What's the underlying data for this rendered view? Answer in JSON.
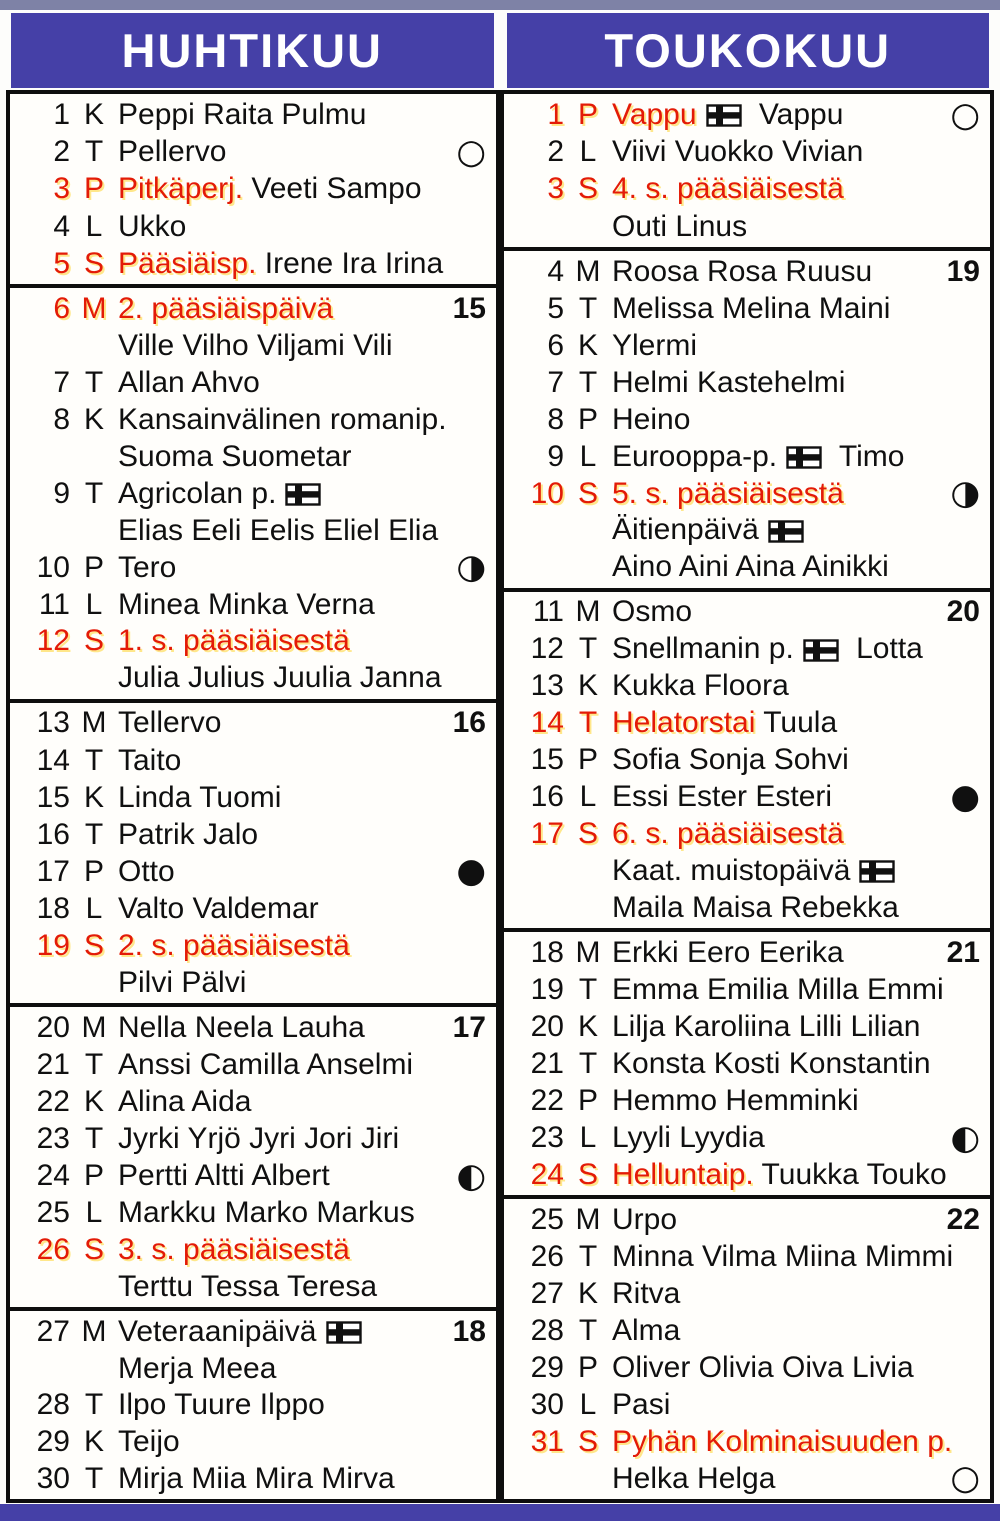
{
  "colors": {
    "header_bg": "#4540a7",
    "holiday_red": "#e31b07",
    "ink": "#101010",
    "edge_strip": "#7e82a6"
  },
  "icons": {
    "finnish_flag": "finnish-flag-icon",
    "moons": {
      "full": "○",
      "last": "◑",
      "new": "●",
      "first": "◐"
    }
  },
  "months": [
    {
      "name": "HUHTIKUU",
      "sections": [
        {
          "rows": [
            {
              "num": "1",
              "letter": "K",
              "segments": [
                {
                  "t": "Peppi Raita Pulmu"
                }
              ]
            },
            {
              "num": "2",
              "letter": "T",
              "segments": [
                {
                  "t": "Pellervo"
                }
              ],
              "right": {
                "type": "moon",
                "phase": "full"
              }
            },
            {
              "num": "3",
              "letter": "P",
              "red": true,
              "segments": [
                {
                  "t": "Pitkäperj.",
                  "red": true
                },
                {
                  "t": " Veeti Sampo"
                }
              ]
            },
            {
              "num": "4",
              "letter": "L",
              "segments": [
                {
                  "t": "Ukko"
                }
              ]
            },
            {
              "num": "5",
              "letter": "S",
              "red": true,
              "segments": [
                {
                  "t": "Pääsiäisp.",
                  "red": true
                },
                {
                  "t": " Irene Ira Irina"
                }
              ]
            }
          ]
        },
        {
          "rows": [
            {
              "num": "6",
              "letter": "M",
              "red": true,
              "segments": [
                {
                  "t": "2. pääsiäispäivä",
                  "red": true
                }
              ],
              "right": {
                "type": "week",
                "value": "15"
              }
            },
            {
              "segments": [
                {
                  "t": "Ville Vilho Viljami Vili"
                }
              ]
            },
            {
              "num": "7",
              "letter": "T",
              "segments": [
                {
                  "t": "Allan Ahvo"
                }
              ]
            },
            {
              "num": "8",
              "letter": "K",
              "segments": [
                {
                  "t": "Kansainvälinen romanip."
                }
              ]
            },
            {
              "segments": [
                {
                  "t": "Suoma Suometar"
                }
              ]
            },
            {
              "num": "9",
              "letter": "T",
              "segments": [
                {
                  "t": "Agricolan p."
                },
                {
                  "icon": "flag"
                }
              ]
            },
            {
              "segments": [
                {
                  "t": "Elias Eeli Eelis Eliel Elia"
                }
              ]
            },
            {
              "num": "10",
              "letter": "P",
              "segments": [
                {
                  "t": "Tero"
                }
              ],
              "right": {
                "type": "moon",
                "phase": "last"
              }
            },
            {
              "num": "11",
              "letter": "L",
              "segments": [
                {
                  "t": "Minea Minka Verna"
                }
              ]
            },
            {
              "num": "12",
              "letter": "S",
              "red": true,
              "segments": [
                {
                  "t": "1. s. pääsiäisestä",
                  "red": true
                }
              ]
            },
            {
              "segments": [
                {
                  "t": "Julia Julius Juulia Janna"
                }
              ]
            }
          ]
        },
        {
          "rows": [
            {
              "num": "13",
              "letter": "M",
              "segments": [
                {
                  "t": "Tellervo"
                }
              ],
              "right": {
                "type": "week",
                "value": "16"
              }
            },
            {
              "num": "14",
              "letter": "T",
              "segments": [
                {
                  "t": "Taito"
                }
              ]
            },
            {
              "num": "15",
              "letter": "K",
              "segments": [
                {
                  "t": "Linda Tuomi"
                }
              ]
            },
            {
              "num": "16",
              "letter": "T",
              "segments": [
                {
                  "t": "Patrik Jalo"
                }
              ]
            },
            {
              "num": "17",
              "letter": "P",
              "segments": [
                {
                  "t": "Otto"
                }
              ],
              "right": {
                "type": "moon",
                "phase": "new"
              }
            },
            {
              "num": "18",
              "letter": "L",
              "segments": [
                {
                  "t": "Valto Valdemar"
                }
              ]
            },
            {
              "num": "19",
              "letter": "S",
              "red": true,
              "segments": [
                {
                  "t": "2. s. pääsiäisestä",
                  "red": true
                }
              ]
            },
            {
              "segments": [
                {
                  "t": "Pilvi Pälvi"
                }
              ]
            }
          ]
        },
        {
          "rows": [
            {
              "num": "20",
              "letter": "M",
              "segments": [
                {
                  "t": "Nella Neela Lauha"
                }
              ],
              "right": {
                "type": "week",
                "value": "17"
              }
            },
            {
              "num": "21",
              "letter": "T",
              "segments": [
                {
                  "t": "Anssi Camilla Anselmi"
                }
              ]
            },
            {
              "num": "22",
              "letter": "K",
              "segments": [
                {
                  "t": "Alina Aida"
                }
              ]
            },
            {
              "num": "23",
              "letter": "T",
              "segments": [
                {
                  "t": "Jyrki Yrjö Jyri Jori Jiri"
                }
              ]
            },
            {
              "num": "24",
              "letter": "P",
              "segments": [
                {
                  "t": "Pertti Altti Albert"
                }
              ],
              "right": {
                "type": "moon",
                "phase": "first"
              }
            },
            {
              "num": "25",
              "letter": "L",
              "segments": [
                {
                  "t": "Markku Marko Markus"
                }
              ]
            },
            {
              "num": "26",
              "letter": "S",
              "red": true,
              "segments": [
                {
                  "t": "3. s. pääsiäisestä",
                  "red": true
                }
              ]
            },
            {
              "segments": [
                {
                  "t": "Terttu Tessa Teresa"
                }
              ]
            }
          ]
        },
        {
          "rows": [
            {
              "num": "27",
              "letter": "M",
              "segments": [
                {
                  "t": "Veteraanipäivä"
                },
                {
                  "icon": "flag"
                }
              ],
              "right": {
                "type": "week",
                "value": "18"
              }
            },
            {
              "segments": [
                {
                  "t": "Merja Meea"
                }
              ]
            },
            {
              "num": "28",
              "letter": "T",
              "segments": [
                {
                  "t": "Ilpo Tuure Ilppo"
                }
              ]
            },
            {
              "num": "29",
              "letter": "K",
              "segments": [
                {
                  "t": "Teijo"
                }
              ]
            },
            {
              "num": "30",
              "letter": "T",
              "segments": [
                {
                  "t": "Mirja Miia Mira Mirva"
                }
              ]
            }
          ]
        }
      ]
    },
    {
      "name": "TOUKOKUU",
      "sections": [
        {
          "rows": [
            {
              "num": "1",
              "letter": "P",
              "red": true,
              "segments": [
                {
                  "t": "Vappu",
                  "red": true
                },
                {
                  "icon": "flag"
                },
                {
                  "t": " Vappu"
                }
              ],
              "right": {
                "type": "moon",
                "phase": "full"
              }
            },
            {
              "num": "2",
              "letter": "L",
              "segments": [
                {
                  "t": "Viivi Vuokko Vivian"
                }
              ]
            },
            {
              "num": "3",
              "letter": "S",
              "red": true,
              "segments": [
                {
                  "t": "4. s. pääsiäisestä",
                  "red": true
                }
              ]
            },
            {
              "segments": [
                {
                  "t": "Outi Linus"
                }
              ]
            }
          ]
        },
        {
          "rows": [
            {
              "num": "4",
              "letter": "M",
              "segments": [
                {
                  "t": "Roosa Rosa Ruusu"
                }
              ],
              "right": {
                "type": "week",
                "value": "19"
              }
            },
            {
              "num": "5",
              "letter": "T",
              "segments": [
                {
                  "t": "Melissa Melina Maini"
                }
              ]
            },
            {
              "num": "6",
              "letter": "K",
              "segments": [
                {
                  "t": "Ylermi"
                }
              ]
            },
            {
              "num": "7",
              "letter": "T",
              "segments": [
                {
                  "t": "Helmi Kastehelmi"
                }
              ]
            },
            {
              "num": "8",
              "letter": "P",
              "segments": [
                {
                  "t": "Heino"
                }
              ]
            },
            {
              "num": "9",
              "letter": "L",
              "segments": [
                {
                  "t": "Eurooppa-p."
                },
                {
                  "icon": "flag"
                },
                {
                  "t": " Timo"
                }
              ]
            },
            {
              "num": "10",
              "letter": "S",
              "red": true,
              "segments": [
                {
                  "t": "5. s. pääsiäisestä",
                  "red": true
                }
              ],
              "right": {
                "type": "moon",
                "phase": "last"
              }
            },
            {
              "segments": [
                {
                  "t": "Äitienpäivä"
                },
                {
                  "icon": "flag"
                }
              ]
            },
            {
              "segments": [
                {
                  "t": "Aino Aini Aina Ainikki"
                }
              ]
            }
          ]
        },
        {
          "rows": [
            {
              "num": "11",
              "letter": "M",
              "segments": [
                {
                  "t": "Osmo"
                }
              ],
              "right": {
                "type": "week",
                "value": "20"
              }
            },
            {
              "num": "12",
              "letter": "T",
              "segments": [
                {
                  "t": "Snellmanin p."
                },
                {
                  "icon": "flag"
                },
                {
                  "t": " Lotta"
                }
              ]
            },
            {
              "num": "13",
              "letter": "K",
              "segments": [
                {
                  "t": "Kukka Floora"
                }
              ]
            },
            {
              "num": "14",
              "letter": "T",
              "red": true,
              "segments": [
                {
                  "t": "Helatorstai",
                  "red": true
                },
                {
                  "t": " Tuula"
                }
              ]
            },
            {
              "num": "15",
              "letter": "P",
              "segments": [
                {
                  "t": "Sofia Sonja Sohvi"
                }
              ]
            },
            {
              "num": "16",
              "letter": "L",
              "segments": [
                {
                  "t": "Essi Ester Esteri"
                }
              ],
              "right": {
                "type": "moon",
                "phase": "new"
              }
            },
            {
              "num": "17",
              "letter": "S",
              "red": true,
              "segments": [
                {
                  "t": "6. s. pääsiäisestä",
                  "red": true
                }
              ]
            },
            {
              "segments": [
                {
                  "t": "Kaat. muistopäivä"
                },
                {
                  "icon": "flag"
                }
              ]
            },
            {
              "segments": [
                {
                  "t": "Maila Maisa Rebekka"
                }
              ]
            }
          ]
        },
        {
          "rows": [
            {
              "num": "18",
              "letter": "M",
              "segments": [
                {
                  "t": "Erkki Eero Eerika"
                }
              ],
              "right": {
                "type": "week",
                "value": "21"
              }
            },
            {
              "num": "19",
              "letter": "T",
              "segments": [
                {
                  "t": "Emma Emilia Milla Emmi"
                }
              ]
            },
            {
              "num": "20",
              "letter": "K",
              "segments": [
                {
                  "t": "Lilja Karoliina Lilli Lilian"
                }
              ]
            },
            {
              "num": "21",
              "letter": "T",
              "segments": [
                {
                  "t": "Konsta Kosti Konstantin"
                }
              ]
            },
            {
              "num": "22",
              "letter": "P",
              "segments": [
                {
                  "t": "Hemmo Hemminki"
                }
              ]
            },
            {
              "num": "23",
              "letter": "L",
              "segments": [
                {
                  "t": "Lyyli Lyydia"
                }
              ],
              "right": {
                "type": "moon",
                "phase": "first"
              }
            },
            {
              "num": "24",
              "letter": "S",
              "red": true,
              "segments": [
                {
                  "t": "Helluntaip.",
                  "red": true
                },
                {
                  "t": " Tuukka Touko"
                }
              ]
            }
          ]
        },
        {
          "rows": [
            {
              "num": "25",
              "letter": "M",
              "segments": [
                {
                  "t": "Urpo"
                }
              ],
              "right": {
                "type": "week",
                "value": "22"
              }
            },
            {
              "num": "26",
              "letter": "T",
              "segments": [
                {
                  "t": "Minna Vilma Miina Mimmi"
                }
              ]
            },
            {
              "num": "27",
              "letter": "K",
              "segments": [
                {
                  "t": "Ritva"
                }
              ]
            },
            {
              "num": "28",
              "letter": "T",
              "segments": [
                {
                  "t": "Alma"
                }
              ]
            },
            {
              "num": "29",
              "letter": "P",
              "segments": [
                {
                  "t": "Oliver Olivia Oiva Livia"
                }
              ]
            },
            {
              "num": "30",
              "letter": "L",
              "segments": [
                {
                  "t": "Pasi"
                }
              ]
            },
            {
              "num": "31",
              "letter": "S",
              "red": true,
              "segments": [
                {
                  "t": "Pyhän Kolminaisuuden p.",
                  "red": true
                }
              ]
            },
            {
              "segments": [
                {
                  "t": "Helka Helga"
                }
              ],
              "right": {
                "type": "moon",
                "phase": "full"
              }
            }
          ]
        }
      ]
    }
  ]
}
